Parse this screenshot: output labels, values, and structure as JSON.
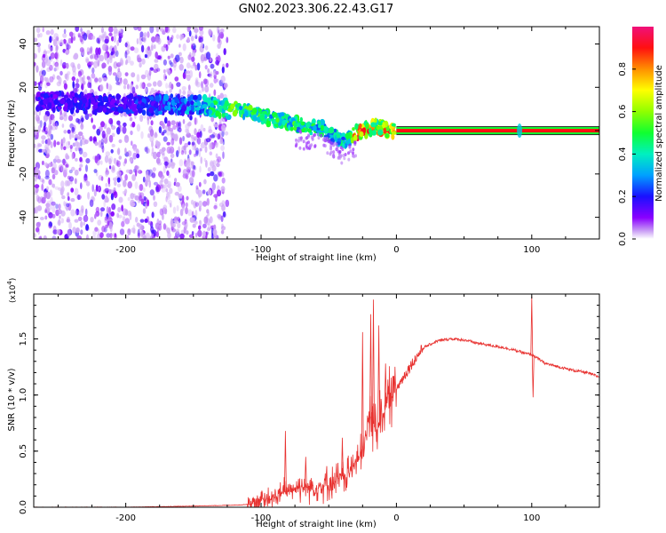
{
  "figure_title": "GN02.2023.306.22.43.G17",
  "chart_data": [
    {
      "type": "heatmap",
      "xlabel": "Height of straight line (km)",
      "ylabel": "Frequency (Hz)",
      "xlim": [
        -268,
        150
      ],
      "ylim": [
        -50,
        48
      ],
      "xticks": [
        -200,
        -100,
        0,
        100
      ],
      "xtick_labels": [
        "-200",
        "-100",
        "0",
        "100"
      ],
      "yticks": [
        40,
        20,
        0,
        -20,
        -40
      ],
      "ytick_labels": [
        "40",
        "20",
        "0",
        "-20",
        "-40"
      ],
      "colorbar": {
        "label": "Normalized spectral amplitude",
        "range": [
          0,
          1
        ],
        "ticks": [
          0.0,
          0.2,
          0.4,
          0.6,
          0.8
        ],
        "tick_labels": [
          "0.0",
          "0.2",
          "0.4",
          "0.6",
          "0.8"
        ]
      },
      "ridge": {
        "x": [
          -265,
          -240,
          -210,
          -180,
          -150,
          -125,
          -110,
          -95,
          -80,
          -65,
          -55,
          -45,
          -40,
          -35,
          -30,
          -25,
          -20,
          -15,
          -10,
          -5,
          0
        ],
        "freq": [
          14,
          13,
          12,
          12,
          12,
          10,
          9,
          6,
          4,
          2,
          1,
          -3,
          -5,
          -4,
          -1,
          0,
          1,
          2,
          1,
          0,
          0
        ],
        "amplitude": [
          0.2,
          0.2,
          0.2,
          0.25,
          0.35,
          0.55,
          0.55,
          0.5,
          0.5,
          0.5,
          0.45,
          0.4,
          0.45,
          0.5,
          0.9,
          0.85,
          0.85,
          0.7,
          0.85,
          0.9,
          0.9
        ]
      },
      "carrier": {
        "freq": 0,
        "x_start": 0,
        "x_end": 150,
        "amplitude": 1.0
      },
      "spike": {
        "x": 91,
        "freq": 0,
        "amplitude": 0.35
      },
      "noise_region_x": [
        -268,
        -125
      ]
    },
    {
      "type": "line",
      "xlabel": "Height of straight line (km)",
      "ylabel": "SNR (10 * v/v)",
      "y_multiplier": "(x10",
      "y_multiplier_exponent": "4",
      "y_multiplier_close": ")",
      "xlim": [
        -268,
        150
      ],
      "ylim": [
        0,
        1.9
      ],
      "xticks": [
        -200,
        -100,
        0,
        100
      ],
      "xtick_labels": [
        "-200",
        "-100",
        "0",
        "100"
      ],
      "yticks": [
        0.0,
        0.5,
        1.0,
        1.5
      ],
      "ytick_labels": [
        "0.0",
        "0.5",
        "1.0",
        "1.5"
      ],
      "color": "#e8312f",
      "series": {
        "x": [
          -268,
          -200,
          -150,
          -115,
          -100,
          -90,
          -80,
          -70,
          -60,
          -50,
          -40,
          -35,
          -30,
          -25,
          -20,
          -15,
          -10,
          -5,
          0,
          10,
          20,
          30,
          40,
          50,
          60,
          70,
          80,
          90,
          95,
          100,
          105,
          110,
          120,
          130,
          140,
          150
        ],
        "y": [
          0.0,
          0.0,
          0.01,
          0.02,
          0.04,
          0.08,
          0.15,
          0.18,
          0.17,
          0.2,
          0.25,
          0.3,
          0.4,
          0.45,
          0.8,
          0.7,
          0.85,
          0.95,
          1.05,
          1.25,
          1.42,
          1.48,
          1.5,
          1.49,
          1.46,
          1.44,
          1.42,
          1.39,
          1.37,
          1.36,
          1.32,
          1.28,
          1.25,
          1.22,
          1.2,
          1.16
        ]
      },
      "spikes": [
        {
          "x": -82,
          "y": 0.68
        },
        {
          "x": -67,
          "y": 0.45
        },
        {
          "x": -40,
          "y": 0.62
        },
        {
          "x": -25,
          "y": 1.56
        },
        {
          "x": -19,
          "y": 1.72
        },
        {
          "x": -17,
          "y": 1.85
        },
        {
          "x": -13,
          "y": 1.62
        },
        {
          "x": -8,
          "y": 1.28
        },
        {
          "x": 100,
          "y": 1.88
        },
        {
          "x": 101,
          "y": 0.98
        }
      ]
    }
  ]
}
